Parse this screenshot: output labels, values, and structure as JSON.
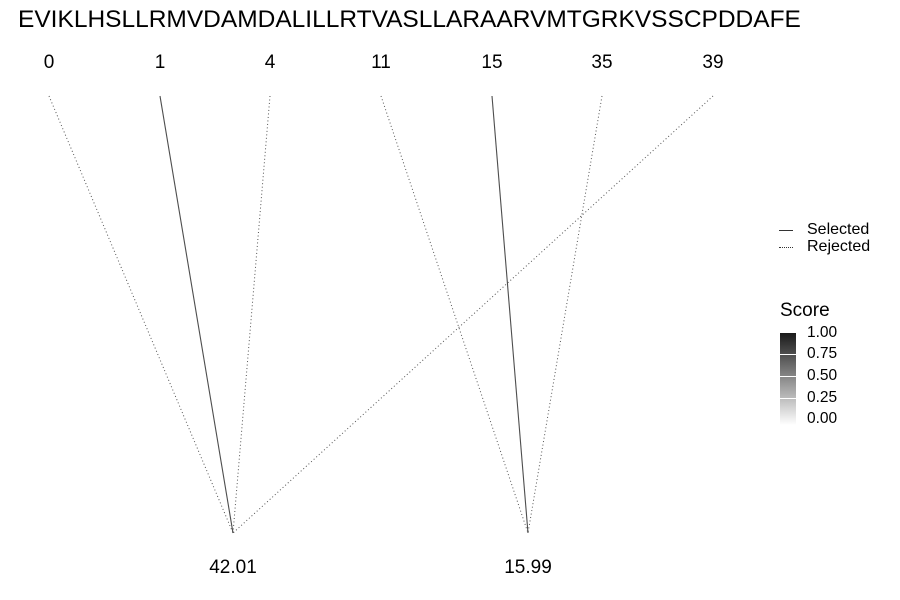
{
  "sequence": "EVIKLHSLLRMVDAMDALILLRTVASLLARAARVMTGRKVSSCPDDAFE",
  "positions": [
    "0",
    "1",
    "4",
    "11",
    "15",
    "35",
    "39"
  ],
  "masses": [
    "42.01",
    "15.99"
  ],
  "legend": {
    "selected": "Selected",
    "rejected": "Rejected"
  },
  "score": {
    "title": "Score",
    "ticks": [
      "1.00",
      "0.75",
      "0.50",
      "0.25",
      "0.00"
    ],
    "high_color": "#1a1a1a",
    "low_color": "#ffffff"
  },
  "links": [
    {
      "position": "0",
      "mass": "42.01",
      "status": "rejected"
    },
    {
      "position": "1",
      "mass": "42.01",
      "status": "selected"
    },
    {
      "position": "4",
      "mass": "42.01",
      "status": "rejected"
    },
    {
      "position": "39",
      "mass": "42.01",
      "status": "rejected"
    },
    {
      "position": "11",
      "mass": "15.99",
      "status": "rejected"
    },
    {
      "position": "15",
      "mass": "15.99",
      "status": "selected"
    },
    {
      "position": "35",
      "mass": "15.99",
      "status": "rejected"
    }
  ]
}
